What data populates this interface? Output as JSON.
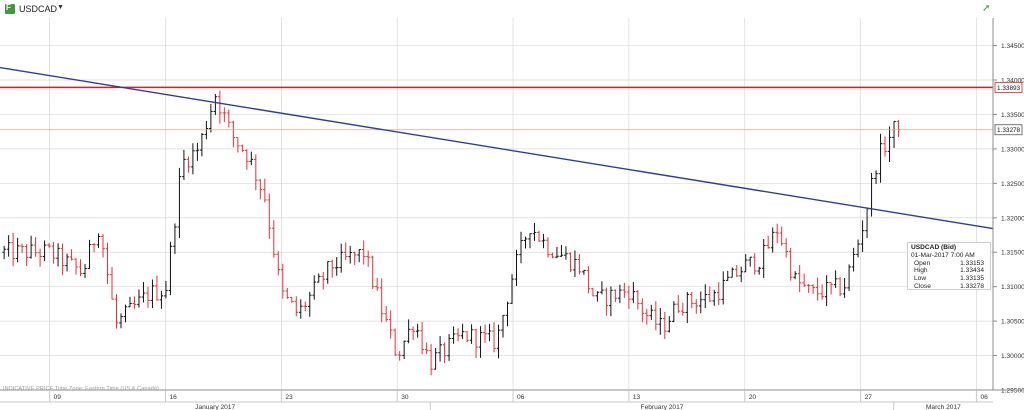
{
  "header": {
    "symbol": "USDCAD",
    "dropdown_glyph": "▼",
    "logo_glyph": "F",
    "pin_glyph": "➚"
  },
  "info_box": {
    "title": "USDCAD (Bid)",
    "datetime": "01-Mar-2017 7:00 AM",
    "rows": [
      {
        "k": "Open",
        "v": "1.33153"
      },
      {
        "k": "High",
        "v": "1.33434"
      },
      {
        "k": "Low",
        "v": "1.33135"
      },
      {
        "k": "Close",
        "v": "1.33278"
      }
    ]
  },
  "footnote": "INDICATIVE PRICE   Time Zone: Eastern Time (US & Canada)",
  "colors": {
    "up": "#111111",
    "down": "#e8303a",
    "trendline": "#2c3e9c",
    "resistance": "#d42020",
    "lastprice": "#f0a080",
    "grid": "#d9d9d9"
  },
  "chart_data": {
    "type": "ohlc",
    "series_name": "USDCAD",
    "ylim": [
      1.295,
      1.349
    ],
    "y_ticks": [
      "1.29500",
      "1.30000",
      "1.30500",
      "1.31000",
      "1.31500",
      "1.32000",
      "1.32500",
      "1.33000",
      "1.33500",
      "1.34000",
      "1.34500"
    ],
    "x_day_ticks": [
      "09",
      "16",
      "23",
      "30",
      "06",
      "13",
      "20",
      "27",
      "06"
    ],
    "x_month_labels": [
      "January 2017",
      "February 2017",
      "March 2017"
    ],
    "price_tags": [
      {
        "label": "1.33893",
        "value": 1.33893,
        "kind": "resistance"
      },
      {
        "label": "1.33278",
        "value": 1.33278,
        "kind": "last"
      }
    ],
    "trendline": {
      "from": {
        "date": "2017-01-06",
        "value": 1.3418
      },
      "to": {
        "date": "2017-03-03",
        "value": 1.32
      }
    },
    "bar_count": 200,
    "points": [
      {
        "date": "2017-01-09",
        "close": 1.315
      },
      {
        "date": "2017-01-11",
        "close": 1.312
      },
      {
        "date": "2017-01-12",
        "close": 1.319
      },
      {
        "date": "2017-01-13",
        "close": 1.3045
      },
      {
        "date": "2017-01-15",
        "close": 1.309
      },
      {
        "date": "2017-01-16",
        "close": 1.3095
      },
      {
        "date": "2017-01-17",
        "close": 1.328
      },
      {
        "date": "2017-01-18",
        "close": 1.33
      },
      {
        "date": "2017-01-19",
        "close": 1.338
      },
      {
        "date": "2017-01-20",
        "close": 1.332
      },
      {
        "date": "2017-01-21",
        "close": 1.329
      },
      {
        "date": "2017-01-22",
        "close": 1.323
      },
      {
        "date": "2017-01-23",
        "close": 1.309
      },
      {
        "date": "2017-01-24",
        "close": 1.306
      },
      {
        "date": "2017-01-26",
        "close": 1.313
      },
      {
        "date": "2017-01-28",
        "close": 1.315
      },
      {
        "date": "2017-01-29",
        "close": 1.307
      },
      {
        "date": "2017-01-30",
        "close": 1.3
      },
      {
        "date": "2017-01-31",
        "close": 1.305
      },
      {
        "date": "2017-02-01",
        "close": 1.299
      },
      {
        "date": "2017-02-03",
        "close": 1.303
      },
      {
        "date": "2017-02-05",
        "close": 1.302
      },
      {
        "date": "2017-02-06",
        "close": 1.312
      },
      {
        "date": "2017-02-07",
        "close": 1.319
      },
      {
        "date": "2017-02-08",
        "close": 1.316
      },
      {
        "date": "2017-02-10",
        "close": 1.313
      },
      {
        "date": "2017-02-11",
        "close": 1.308
      },
      {
        "date": "2017-02-13",
        "close": 1.3095
      },
      {
        "date": "2017-02-14",
        "close": 1.306
      },
      {
        "date": "2017-02-15",
        "close": 1.304
      },
      {
        "date": "2017-02-16",
        "close": 1.3075
      },
      {
        "date": "2017-02-18",
        "close": 1.3085
      },
      {
        "date": "2017-02-20",
        "close": 1.313
      },
      {
        "date": "2017-02-21",
        "close": 1.314
      },
      {
        "date": "2017-02-22",
        "close": 1.3185
      },
      {
        "date": "2017-02-23",
        "close": 1.311
      },
      {
        "date": "2017-02-24",
        "close": 1.309
      },
      {
        "date": "2017-02-26",
        "close": 1.31
      },
      {
        "date": "2017-02-27",
        "close": 1.3175
      },
      {
        "date": "2017-02-28",
        "close": 1.3285
      },
      {
        "date": "2017-03-01",
        "close": 1.3328
      }
    ]
  }
}
